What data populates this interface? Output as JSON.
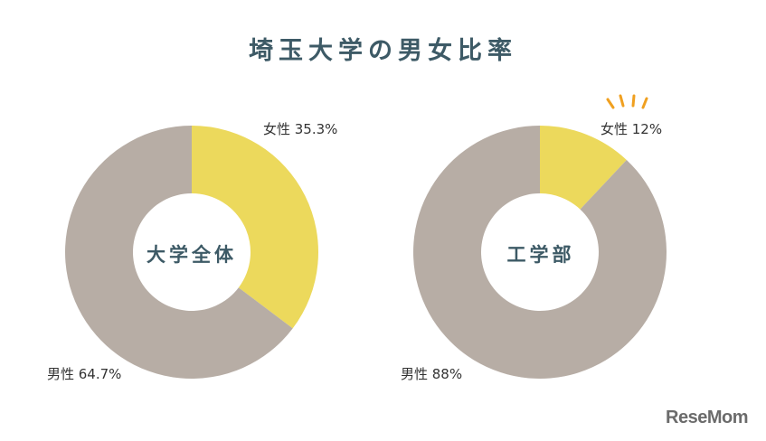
{
  "title": "埼玉大学の男女比率",
  "colors": {
    "female": "#ecd95c",
    "male": "#b7ada5",
    "accent": "#f0a020",
    "title": "#3d5a66"
  },
  "chart_data": [
    {
      "type": "pie",
      "center_label": "大学全体",
      "series": [
        {
          "label": "女性 35.3%",
          "value": 35.3
        },
        {
          "label": "男性 64.7%",
          "value": 64.7
        }
      ]
    },
    {
      "type": "pie",
      "center_label": "工学部",
      "series": [
        {
          "label": "女性 12%",
          "value": 12
        },
        {
          "label": "男性 88%",
          "value": 88
        }
      ]
    }
  ],
  "logo": "ReseMom"
}
